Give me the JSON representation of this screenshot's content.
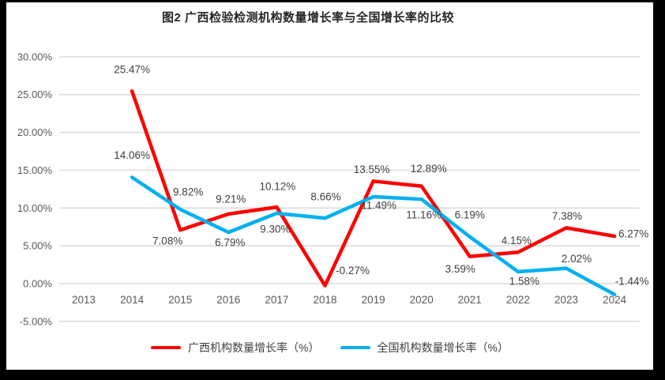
{
  "title": "图2 广西检验检测机构数量增长率与全国增长率的比较",
  "colors": {
    "guangxi_line": "#FF0000",
    "national_line": "#00B0F0",
    "gridline": "#DCDCDC",
    "axis_label": "#595959",
    "data_label": "#404040",
    "title_text": "#262626",
    "frame_border": "#000000",
    "background": "#FFFFFF"
  },
  "chart_data": {
    "type": "line",
    "title": "图2 广西检验检测机构数量增长率与全国增长率的比较",
    "xlabel": "",
    "ylabel": "",
    "categories": [
      "2013",
      "2014",
      "2015",
      "2016",
      "2017",
      "2018",
      "2019",
      "2020",
      "2021",
      "2022",
      "2023",
      "2024"
    ],
    "ylim": [
      -5,
      30
    ],
    "yticks": [
      30,
      25,
      20,
      15,
      10,
      5,
      0,
      -5
    ],
    "ytick_labels": [
      "30.00%",
      "25.00%",
      "20.00%",
      "15.00%",
      "10.00%",
      "5.00%",
      "0.00%",
      "-5.00%"
    ],
    "grid": true,
    "legend_position": "bottom",
    "series": [
      {
        "name": "广西机构数量增长率（%）",
        "color": "#FF0000",
        "values": [
          null,
          25.47,
          7.08,
          9.21,
          10.12,
          -0.27,
          13.55,
          12.89,
          3.59,
          4.15,
          7.38,
          6.27
        ],
        "labels": [
          "",
          "25.47%",
          "7.08%",
          "9.21%",
          "10.12%",
          "-0.27%",
          "13.55%",
          "12.89%",
          "3.59%",
          "4.15%",
          "7.38%",
          "6.27%"
        ],
        "label_offsets": [
          [
            0,
            0
          ],
          [
            0,
            -27
          ],
          [
            -16,
            14
          ],
          [
            3,
            -19
          ],
          [
            1,
            -26
          ],
          [
            35,
            -19
          ],
          [
            -2,
            -15
          ],
          [
            9,
            -22
          ],
          [
            -12,
            16
          ],
          [
            -2,
            -15
          ],
          [
            1,
            -15
          ],
          [
            24,
            -3
          ]
        ]
      },
      {
        "name": "全国机构数量增长率（%）",
        "color": "#00B0F0",
        "values": [
          null,
          14.06,
          9.82,
          6.79,
          9.3,
          8.66,
          11.49,
          11.16,
          6.19,
          1.58,
          2.02,
          -1.44
        ],
        "labels": [
          "",
          "14.06%",
          "9.82%",
          "6.79%",
          "9.30%",
          "8.66%",
          "11.49%",
          "11.16%",
          "6.19%",
          "1.58%",
          "2.02%",
          "-1.44%"
        ],
        "label_offsets": [
          [
            0,
            0
          ],
          [
            0,
            -28
          ],
          [
            10,
            -22
          ],
          [
            2,
            13
          ],
          [
            -2,
            20
          ],
          [
            1,
            -27
          ],
          [
            7,
            11
          ],
          [
            3,
            20
          ],
          [
            0,
            -28
          ],
          [
            8,
            12
          ],
          [
            13,
            -12
          ],
          [
            22,
            -17
          ]
        ]
      }
    ]
  },
  "legend": {
    "items": [
      {
        "label": "广西机构数量增长率（%）",
        "color": "#FF0000"
      },
      {
        "label": "全国机构数量增长率（%）",
        "color": "#00B0F0"
      }
    ]
  }
}
